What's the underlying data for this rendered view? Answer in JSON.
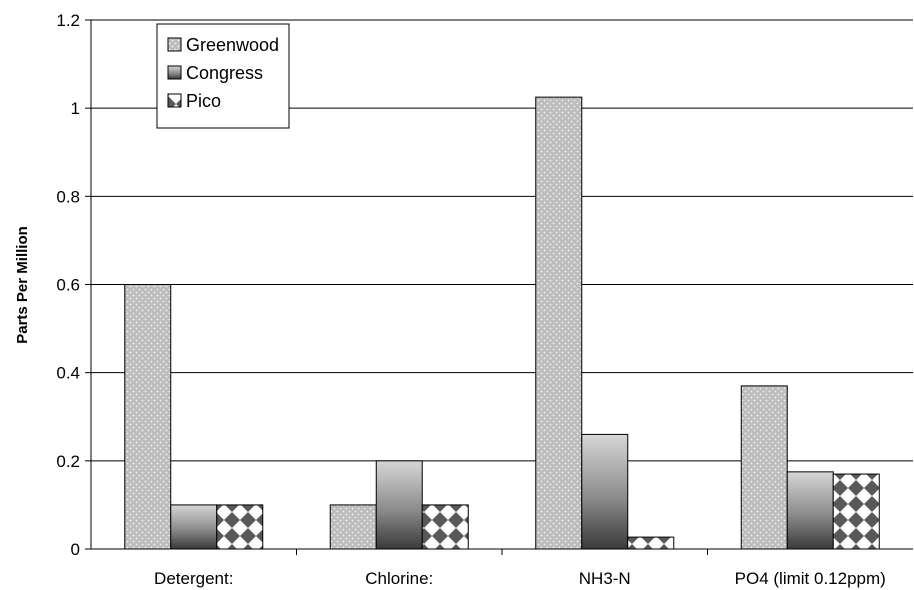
{
  "chart_data": {
    "type": "bar",
    "title": "",
    "xlabel": "",
    "ylabel": "Parts Per Million",
    "ylim": [
      0,
      1.2
    ],
    "yticks": [
      "0",
      "0.2",
      "0.4",
      "0.6",
      "0.8",
      "1",
      "1.2"
    ],
    "grid": true,
    "legend_position": "top-left",
    "categories": [
      "Detergent:",
      "Chlorine:",
      "NH3-N",
      "PO4 (limit 0.12ppm)"
    ],
    "series": [
      {
        "name": "Greenwood",
        "values": [
          0.6,
          0.1,
          1.025,
          0.37
        ],
        "pattern": "dotted-gray"
      },
      {
        "name": "Congress",
        "values": [
          0.1,
          0.2,
          0.26,
          0.175
        ],
        "pattern": "gradient-gray"
      },
      {
        "name": "Pico",
        "values": [
          0.1,
          0.1,
          0.027,
          0.17
        ],
        "pattern": "diamond-checker"
      }
    ]
  }
}
